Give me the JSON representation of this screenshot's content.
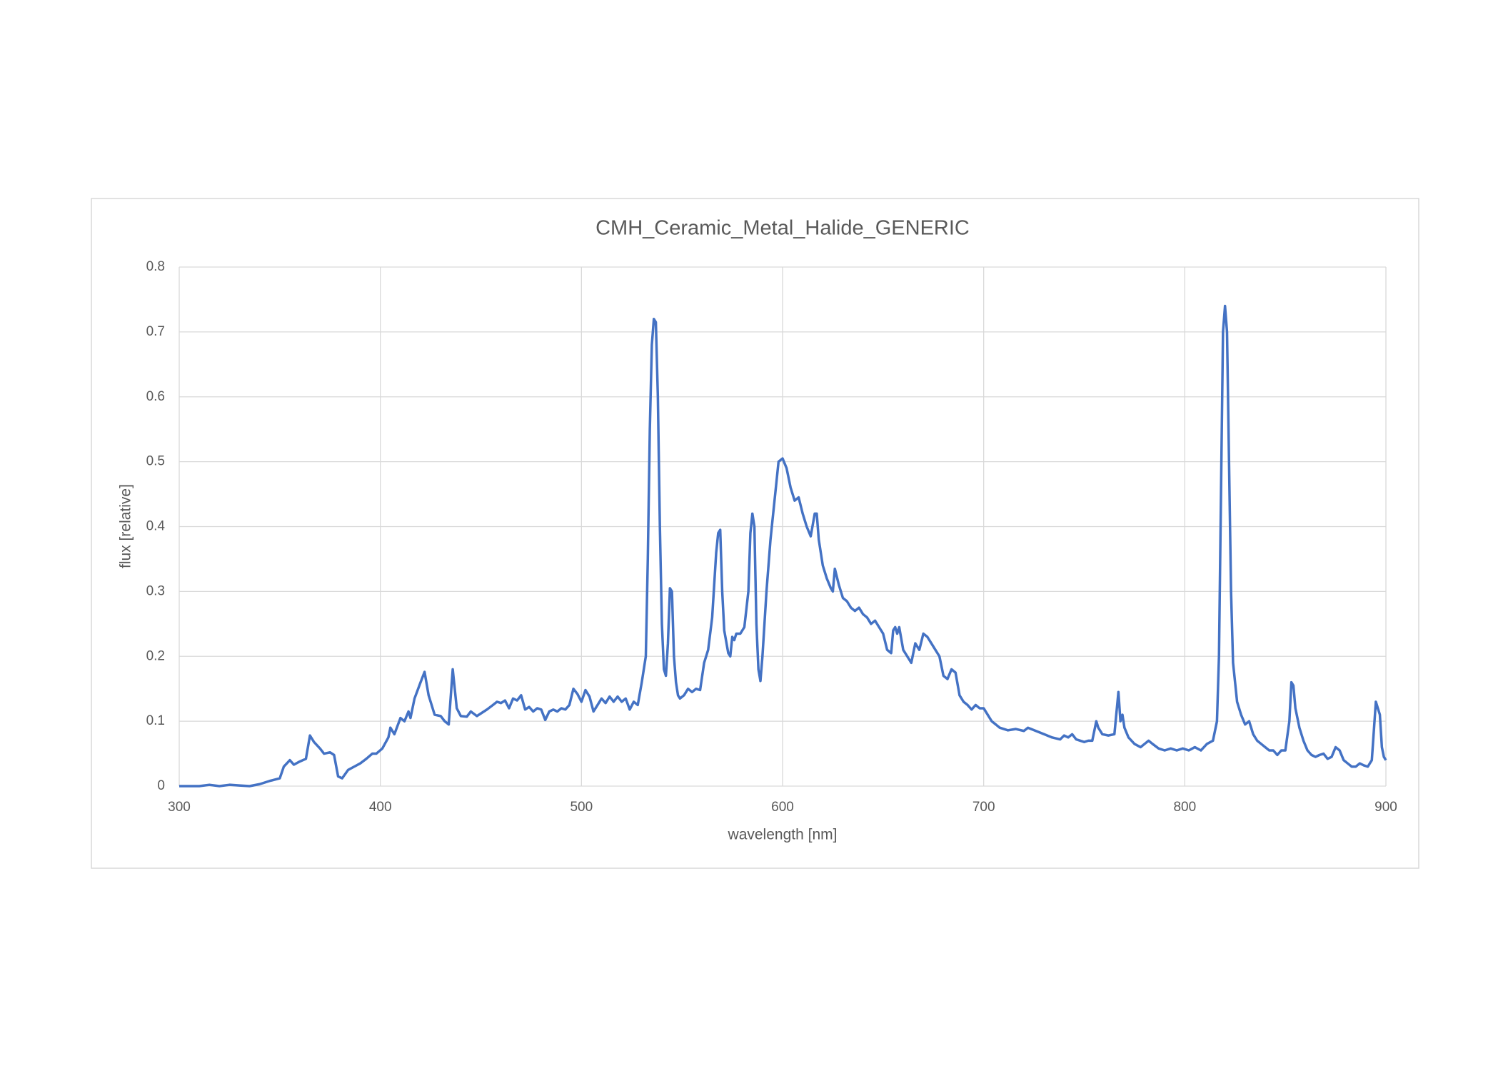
{
  "chart_data": {
    "type": "line",
    "title": "CMH_Ceramic_Metal_Halide_GENERIC",
    "x_label": "wavelength [nm]",
    "y_label": "flux [relative]",
    "xlim": [
      300,
      900
    ],
    "xticks": [
      300,
      400,
      500,
      600,
      700,
      800,
      900
    ],
    "ylim": [
      0,
      0.8
    ],
    "yticks": [
      0,
      0.1,
      0.2,
      0.3,
      0.4,
      0.5,
      0.6,
      0.7,
      0.8
    ],
    "grid": true,
    "x": [
      300,
      305,
      310,
      315,
      320,
      325,
      330,
      335,
      340,
      345,
      350,
      352,
      355,
      357,
      360,
      363,
      365,
      367,
      370,
      372,
      375,
      377,
      379,
      381,
      384,
      387,
      390,
      393,
      396,
      398,
      401,
      404,
      405,
      407,
      410,
      412,
      414,
      415,
      417,
      420,
      422,
      424,
      427,
      430,
      432,
      434,
      436,
      438,
      440,
      443,
      445,
      448,
      450,
      453,
      456,
      458,
      460,
      462,
      464,
      466,
      468,
      470,
      472,
      474,
      476,
      478,
      480,
      482,
      484,
      486,
      488,
      490,
      492,
      494,
      496,
      498,
      500,
      502,
      504,
      506,
      508,
      510,
      512,
      514,
      516,
      518,
      520,
      522,
      524,
      526,
      528,
      530,
      532,
      533,
      534,
      535,
      536,
      537,
      538,
      539,
      540,
      541,
      542,
      543,
      544,
      545,
      546,
      547,
      548,
      549,
      551,
      553,
      555,
      557,
      559,
      561,
      563,
      565,
      567,
      568,
      569,
      570,
      571,
      573,
      574,
      575,
      576,
      577,
      579,
      581,
      583,
      584,
      585,
      586,
      587,
      588,
      589,
      590,
      592,
      594,
      596,
      598,
      600,
      602,
      604,
      606,
      608,
      610,
      612,
      614,
      616,
      617,
      618,
      620,
      622,
      624,
      625,
      626,
      628,
      630,
      632,
      634,
      636,
      638,
      640,
      642,
      644,
      646,
      648,
      650,
      652,
      654,
      655,
      656,
      657,
      658,
      660,
      662,
      664,
      666,
      668,
      670,
      672,
      674,
      676,
      678,
      680,
      682,
      684,
      686,
      688,
      690,
      692,
      694,
      696,
      698,
      700,
      702,
      704,
      706,
      708,
      712,
      716,
      720,
      722,
      726,
      730,
      734,
      738,
      740,
      742,
      744,
      746,
      750,
      752,
      754,
      756,
      757,
      759,
      762,
      765,
      767,
      768,
      769,
      770,
      772,
      775,
      778,
      780,
      782,
      784,
      787,
      790,
      793,
      796,
      799,
      802,
      805,
      808,
      811,
      814,
      816,
      817,
      818,
      819,
      820,
      821,
      822,
      823,
      824,
      826,
      828,
      830,
      832,
      834,
      836,
      838,
      840,
      842,
      844,
      846,
      848,
      850,
      852,
      853,
      854,
      855,
      857,
      859,
      861,
      863,
      865,
      867,
      869,
      871,
      873,
      875,
      877,
      879,
      881,
      883,
      885,
      887,
      889,
      891,
      893,
      894,
      895,
      896,
      897,
      898,
      899,
      900
    ],
    "series": [
      {
        "name": "CMH_Ceramic_Metal_Halide_GENERIC",
        "color": "#4472c4",
        "values": [
          0,
          0,
          0,
          0.002,
          0,
          0.002,
          0.001,
          0,
          0.003,
          0.008,
          0.012,
          0.03,
          0.04,
          0.033,
          0.038,
          0.042,
          0.078,
          0.068,
          0.058,
          0.05,
          0.052,
          0.048,
          0.015,
          0.012,
          0.025,
          0.03,
          0.035,
          0.042,
          0.05,
          0.05,
          0.058,
          0.075,
          0.09,
          0.08,
          0.105,
          0.1,
          0.115,
          0.105,
          0.135,
          0.16,
          0.176,
          0.14,
          0.11,
          0.108,
          0.1,
          0.095,
          0.18,
          0.12,
          0.108,
          0.107,
          0.115,
          0.108,
          0.112,
          0.118,
          0.125,
          0.13,
          0.128,
          0.132,
          0.12,
          0.135,
          0.132,
          0.14,
          0.118,
          0.122,
          0.115,
          0.12,
          0.118,
          0.102,
          0.115,
          0.118,
          0.115,
          0.12,
          0.118,
          0.125,
          0.15,
          0.142,
          0.13,
          0.148,
          0.138,
          0.115,
          0.125,
          0.135,
          0.128,
          0.138,
          0.13,
          0.138,
          0.13,
          0.135,
          0.118,
          0.13,
          0.125,
          0.16,
          0.2,
          0.35,
          0.55,
          0.68,
          0.72,
          0.715,
          0.6,
          0.4,
          0.25,
          0.18,
          0.17,
          0.22,
          0.305,
          0.3,
          0.2,
          0.16,
          0.14,
          0.135,
          0.14,
          0.15,
          0.145,
          0.15,
          0.148,
          0.19,
          0.21,
          0.26,
          0.36,
          0.39,
          0.395,
          0.3,
          0.24,
          0.205,
          0.2,
          0.23,
          0.225,
          0.235,
          0.235,
          0.245,
          0.3,
          0.39,
          0.42,
          0.4,
          0.25,
          0.18,
          0.162,
          0.2,
          0.3,
          0.38,
          0.44,
          0.5,
          0.505,
          0.49,
          0.46,
          0.44,
          0.445,
          0.42,
          0.4,
          0.385,
          0.42,
          0.42,
          0.38,
          0.34,
          0.32,
          0.305,
          0.3,
          0.335,
          0.31,
          0.29,
          0.285,
          0.275,
          0.27,
          0.275,
          0.265,
          0.26,
          0.25,
          0.255,
          0.245,
          0.235,
          0.21,
          0.205,
          0.24,
          0.245,
          0.235,
          0.245,
          0.21,
          0.2,
          0.19,
          0.22,
          0.21,
          0.235,
          0.23,
          0.22,
          0.21,
          0.2,
          0.17,
          0.165,
          0.18,
          0.175,
          0.14,
          0.13,
          0.125,
          0.118,
          0.125,
          0.12,
          0.12,
          0.11,
          0.1,
          0.095,
          0.09,
          0.086,
          0.088,
          0.085,
          0.09,
          0.085,
          0.08,
          0.075,
          0.072,
          0.078,
          0.075,
          0.08,
          0.072,
          0.068,
          0.07,
          0.07,
          0.1,
          0.09,
          0.08,
          0.078,
          0.08,
          0.145,
          0.1,
          0.11,
          0.09,
          0.075,
          0.065,
          0.06,
          0.065,
          0.07,
          0.065,
          0.058,
          0.055,
          0.058,
          0.055,
          0.058,
          0.055,
          0.06,
          0.055,
          0.065,
          0.07,
          0.1,
          0.2,
          0.45,
          0.7,
          0.74,
          0.7,
          0.5,
          0.3,
          0.19,
          0.13,
          0.11,
          0.095,
          0.1,
          0.08,
          0.07,
          0.065,
          0.06,
          0.055,
          0.055,
          0.048,
          0.055,
          0.055,
          0.1,
          0.16,
          0.155,
          0.12,
          0.09,
          0.07,
          0.055,
          0.048,
          0.045,
          0.048,
          0.05,
          0.042,
          0.045,
          0.06,
          0.055,
          0.04,
          0.035,
          0.03,
          0.03,
          0.035,
          0.032,
          0.03,
          0.04,
          0.085,
          0.13,
          0.12,
          0.11,
          0.06,
          0.045,
          0.04
        ]
      }
    ]
  }
}
